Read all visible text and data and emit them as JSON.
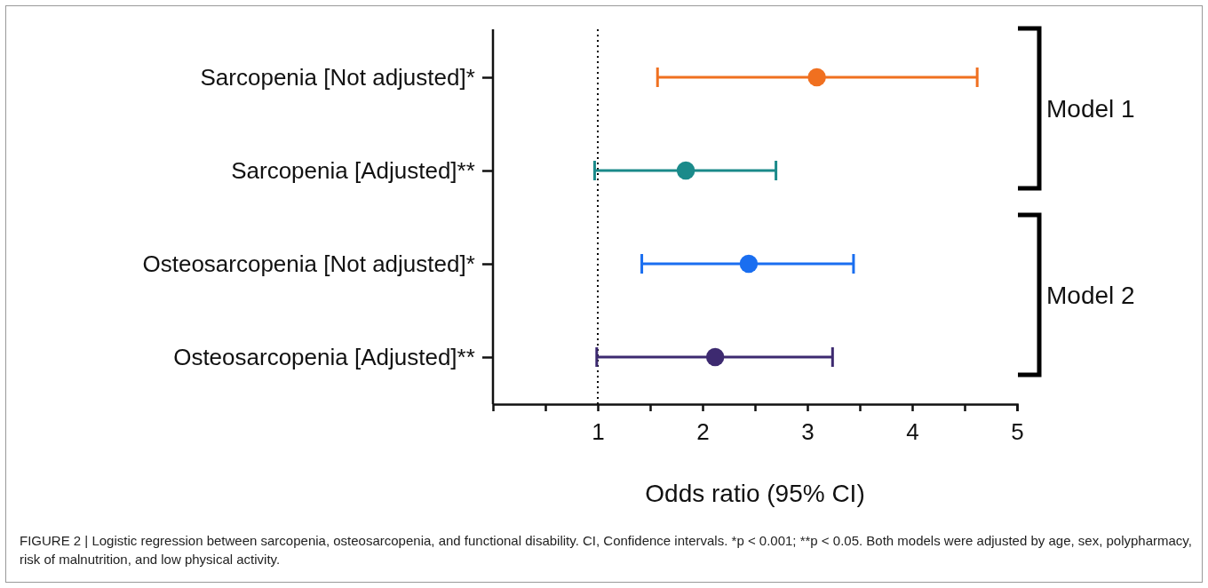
{
  "chart_data": {
    "type": "scatter",
    "orientation": "horizontal",
    "xlabel": "Odds ratio (95% CI)",
    "categories": [
      "Sarcopenia [Not adjusted]*",
      "Sarcopenia [Adjusted]**",
      "Osteosarcopenia [Not adjusted]*",
      "Osteosarcopenia [Adjusted]**"
    ],
    "values": [
      3.09,
      1.84,
      2.44,
      2.12
    ],
    "errors": [
      [
        1.57,
        4.62
      ],
      [
        0.97,
        2.7
      ],
      [
        1.42,
        3.44
      ],
      [
        0.99,
        3.24
      ]
    ],
    "colors": [
      "#f07020",
      "#1a8a8a",
      "#1a6ef0",
      "#3d2a70"
    ],
    "marker": "circle",
    "xlim": [
      0,
      5
    ],
    "xticks": [
      {
        "value": 0.5,
        "label": null
      },
      1,
      {
        "value": 1.5,
        "label": null
      },
      2,
      {
        "value": 2.5,
        "label": null
      },
      3,
      {
        "value": 3.5,
        "label": null
      },
      4,
      {
        "value": 4.5,
        "label": null
      },
      5
    ],
    "grid": false,
    "ref_lines": [
      {
        "axis": "x",
        "value": 1,
        "line_style": "dotted",
        "color": "#000000"
      }
    ],
    "annotations": [
      "Model 1",
      "Model 2",
      "FIGURE 2 | Logistic regression between sarcopenia, osteosarcopenia, and functional disability. CI, Confidence intervals. *p < 0.001; **p < 0.05. Both models were adjusted by age, sex, polypharmacy, risk of malnutrition, and low physical activity."
    ]
  }
}
